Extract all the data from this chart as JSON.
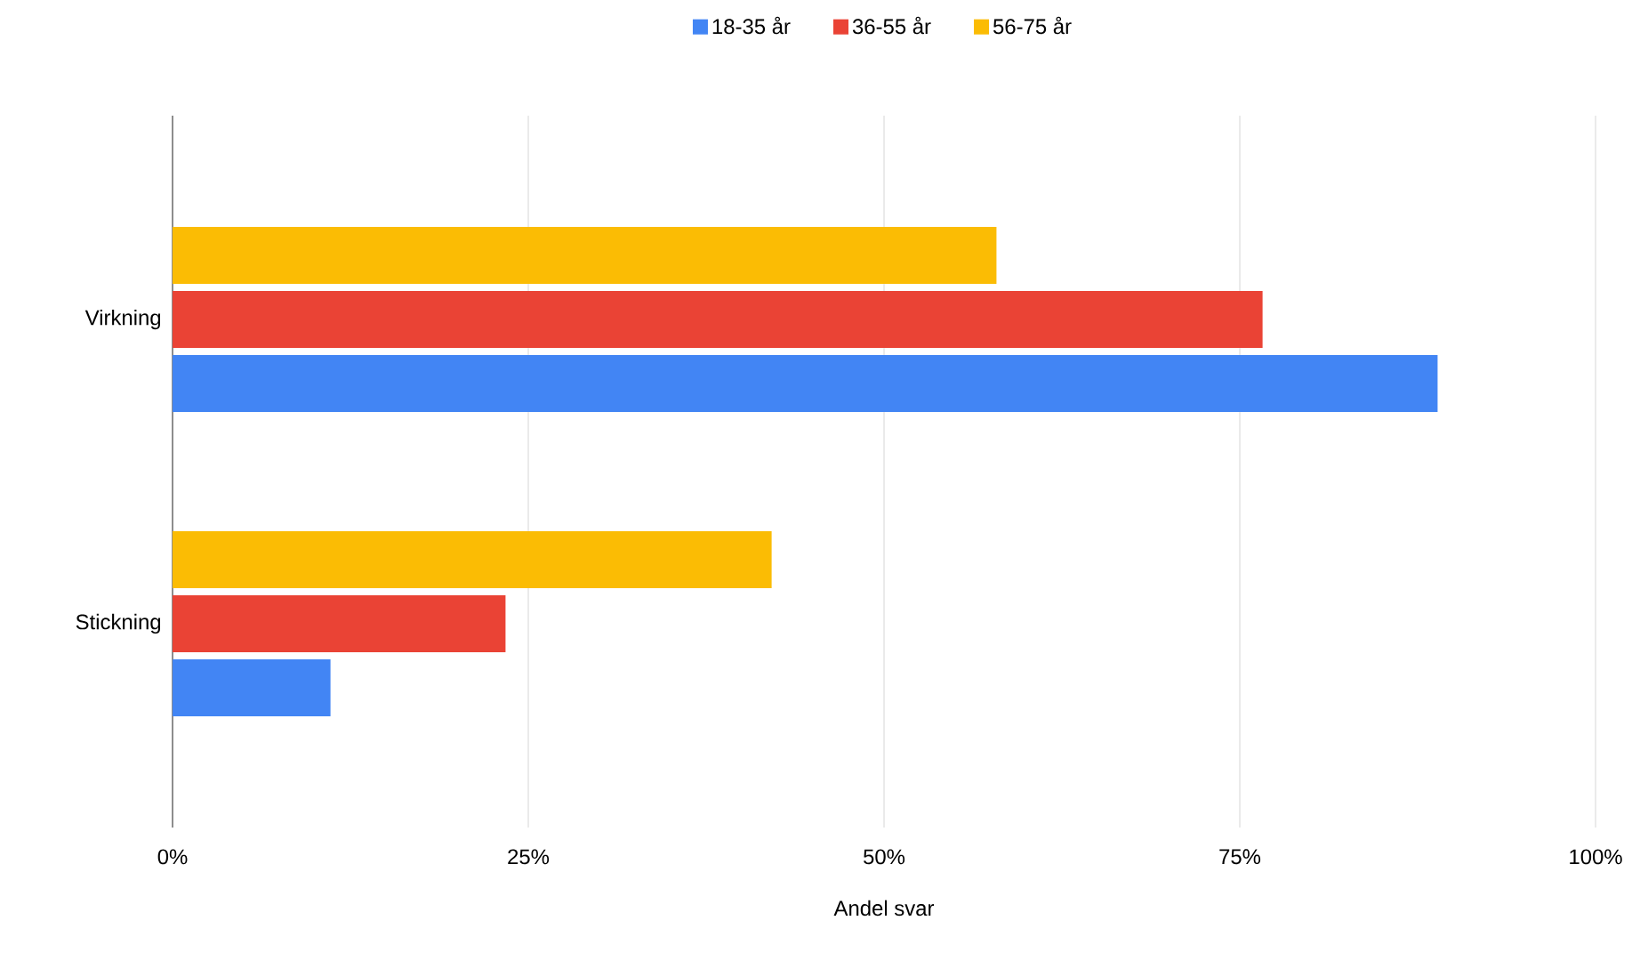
{
  "chart_data": {
    "type": "bar",
    "orientation": "horizontal",
    "xlabel": "Andel svar",
    "categories": [
      "Virkning",
      "Stickning"
    ],
    "series": [
      {
        "name": "18-35 år",
        "color": "#4285f4",
        "values": [
          88.9,
          11.1
        ]
      },
      {
        "name": "36-55 år",
        "color": "#ea4335",
        "values": [
          76.6,
          23.4
        ]
      },
      {
        "name": "56-75 år",
        "color": "#fbbc04",
        "values": [
          57.9,
          42.1
        ]
      }
    ],
    "xlim": [
      0,
      100
    ],
    "xticks": [
      {
        "value": 0,
        "label": "0%"
      },
      {
        "value": 25,
        "label": "25%"
      },
      {
        "value": 50,
        "label": "50%"
      },
      {
        "value": 75,
        "label": "75%"
      },
      {
        "value": 100,
        "label": "100%"
      }
    ],
    "grid": "x",
    "legend": "top"
  }
}
